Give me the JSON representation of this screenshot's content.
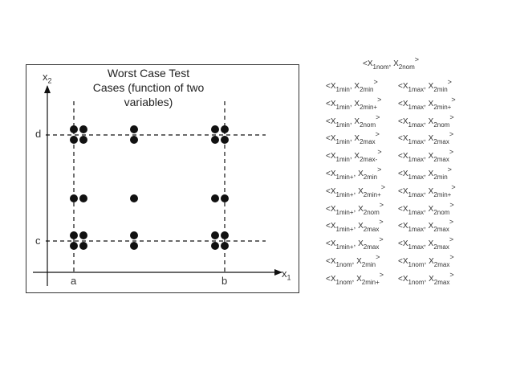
{
  "diagram": {
    "title_lines": [
      "Worst Case Test",
      "Cases (function of two",
      "variables)"
    ],
    "y_axis": {
      "label": "x",
      "sub": "2"
    },
    "x_axis": {
      "label": "x",
      "sub": "1"
    },
    "tick_labels": {
      "d": "d",
      "c": "c",
      "a": "a",
      "b": "b"
    }
  },
  "nominal_case": {
    "x1": "1nom",
    "x2": "2nom"
  },
  "case_pairs": [
    [
      {
        "x1": "1min",
        "x2": "2min"
      },
      {
        "x1": "1max",
        "x2": "2min"
      }
    ],
    [
      {
        "x1": "1min",
        "x2": "2min+"
      },
      {
        "x1": "1max",
        "x2": "2min+"
      }
    ],
    [
      {
        "x1": "1min",
        "x2": "2nom"
      },
      {
        "x1": "1max",
        "x2": "2nom"
      }
    ],
    [
      {
        "x1": "1min",
        "x2": "2max"
      },
      {
        "x1": "1max",
        "x2": "2max"
      }
    ],
    [
      {
        "x1": "1min",
        "x2": "2max-"
      },
      {
        "x1": "1max",
        "x2": "2max"
      }
    ],
    [
      {
        "x1": "1min+",
        "x2": "2min"
      },
      {
        "x1": "1max",
        "x2": "2min"
      }
    ],
    [
      {
        "x1": "1min+",
        "x2": "2min+"
      },
      {
        "x1": "1max",
        "x2": "2min+"
      }
    ],
    [
      {
        "x1": "1min+",
        "x2": "2nom"
      },
      {
        "x1": "1max",
        "x2": "2nom"
      }
    ],
    [
      {
        "x1": "1min+",
        "x2": "2max"
      },
      {
        "x1": "1max",
        "x2": "2max"
      }
    ],
    [
      {
        "x1": "1min+",
        "x2": "2max"
      },
      {
        "x1": "1max",
        "x2": "2max"
      }
    ],
    [
      {
        "x1": "1nom",
        "x2": "2min"
      },
      {
        "x1": "1nom",
        "x2": "2max"
      }
    ],
    [
      {
        "x1": "1nom",
        "x2": "2min+"
      },
      {
        "x1": "1nom",
        "x2": "2max"
      }
    ]
  ]
}
